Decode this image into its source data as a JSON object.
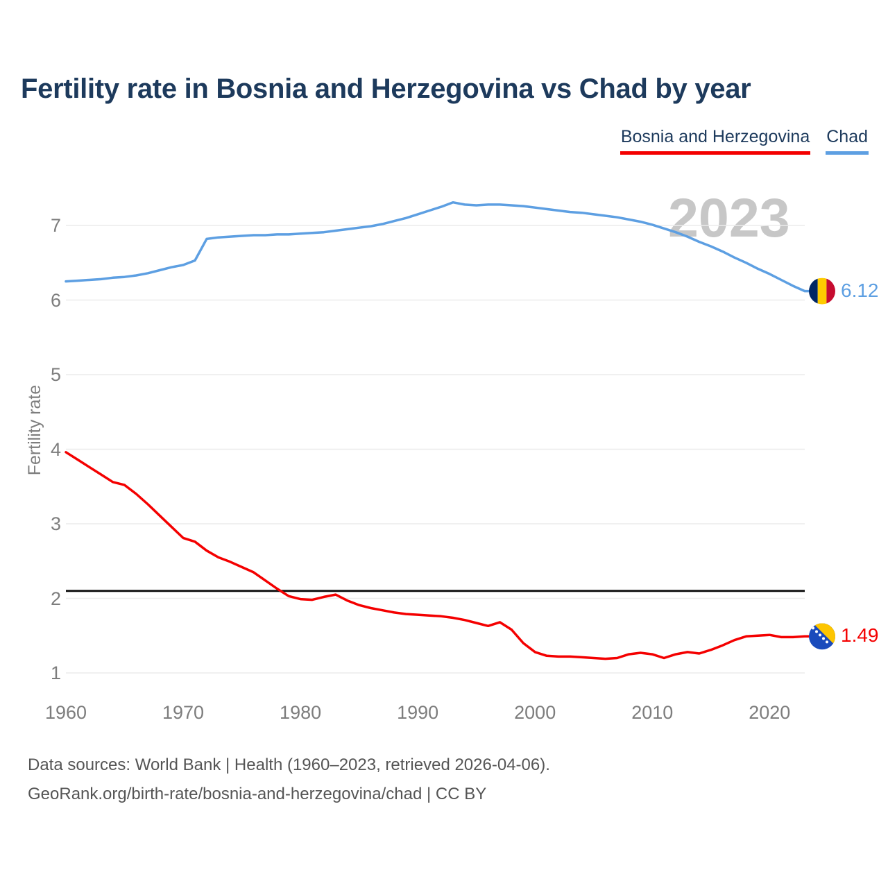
{
  "title": "Fertility rate in Bosnia and Herzegovina vs Chad by year",
  "watermark_year": "2023",
  "legend": {
    "items": [
      {
        "label": "Bosnia and Herzegovina",
        "color": "#f40000"
      },
      {
        "label": "Chad",
        "color": "#5d9fe2"
      }
    ]
  },
  "colors": {
    "title_text": "#1d3a5c",
    "grid_line": "#ebebeb",
    "baseline_black": "#111111",
    "tick_text": "#7d7d7d",
    "watermark": "#c7c7c7",
    "footer_text": "#555555"
  },
  "icons": {
    "chad_flag": {
      "name": "chad-flag-icon",
      "blue": "#002664",
      "yellow": "#fecb00",
      "red": "#c60c30"
    },
    "bosnia_flag": {
      "name": "bosnia-flag-icon",
      "blue": "#1a4bbc",
      "yellow": "#fdc500",
      "star": "#ffffff"
    }
  },
  "chart_data": {
    "type": "line",
    "title": "Fertility rate in Bosnia and Herzegovina vs Chad by year",
    "xlabel": "",
    "ylabel": "Fertility rate",
    "grid": "horizontal",
    "legend_position": "top-right",
    "xlim": [
      1960,
      2023
    ],
    "ylim": [
      0.75,
      7.45
    ],
    "xticks": [
      1960,
      1970,
      1980,
      1990,
      2000,
      2010,
      2020
    ],
    "yticks": [
      1,
      2,
      3,
      4,
      5,
      6,
      7
    ],
    "baseline": 2.1,
    "x_start": 1960,
    "x_end": 2023,
    "series": [
      {
        "name": "Chad",
        "color": "#5d9fe2",
        "end_label": "6.12",
        "flag": "chad_flag",
        "values": [
          6.25,
          6.26,
          6.27,
          6.28,
          6.3,
          6.31,
          6.33,
          6.36,
          6.4,
          6.44,
          6.47,
          6.53,
          6.82,
          6.84,
          6.85,
          6.86,
          6.87,
          6.87,
          6.88,
          6.88,
          6.89,
          6.9,
          6.91,
          6.93,
          6.95,
          6.97,
          6.99,
          7.02,
          7.06,
          7.1,
          7.15,
          7.2,
          7.25,
          7.31,
          7.28,
          7.27,
          7.28,
          7.28,
          7.27,
          7.26,
          7.24,
          7.22,
          7.2,
          7.18,
          7.17,
          7.15,
          7.13,
          7.11,
          7.08,
          7.05,
          7.01,
          6.96,
          6.91,
          6.85,
          6.78,
          6.72,
          6.65,
          6.57,
          6.5,
          6.42,
          6.35,
          6.27,
          6.19,
          6.12
        ]
      },
      {
        "name": "Bosnia and Herzegovina",
        "color": "#f40000",
        "end_label": "1.49",
        "flag": "bosnia_flag",
        "values": [
          3.96,
          3.86,
          3.76,
          3.66,
          3.56,
          3.52,
          3.4,
          3.26,
          3.11,
          2.96,
          2.81,
          2.76,
          2.64,
          2.55,
          2.49,
          2.42,
          2.35,
          2.24,
          2.13,
          2.03,
          1.99,
          1.98,
          2.02,
          2.05,
          1.97,
          1.91,
          1.87,
          1.84,
          1.81,
          1.79,
          1.78,
          1.77,
          1.76,
          1.74,
          1.71,
          1.67,
          1.63,
          1.68,
          1.58,
          1.4,
          1.28,
          1.23,
          1.22,
          1.22,
          1.21,
          1.2,
          1.19,
          1.2,
          1.25,
          1.27,
          1.25,
          1.2,
          1.25,
          1.28,
          1.26,
          1.31,
          1.37,
          1.44,
          1.49,
          1.5,
          1.51,
          1.48,
          1.48,
          1.49
        ]
      }
    ]
  },
  "footer": {
    "line1": "Data sources: World Bank | Health (1960–2023, retrieved 2026-04-06).",
    "line2": "GeoRank.org/birth-rate/bosnia-and-herzegovina/chad | CC BY"
  }
}
